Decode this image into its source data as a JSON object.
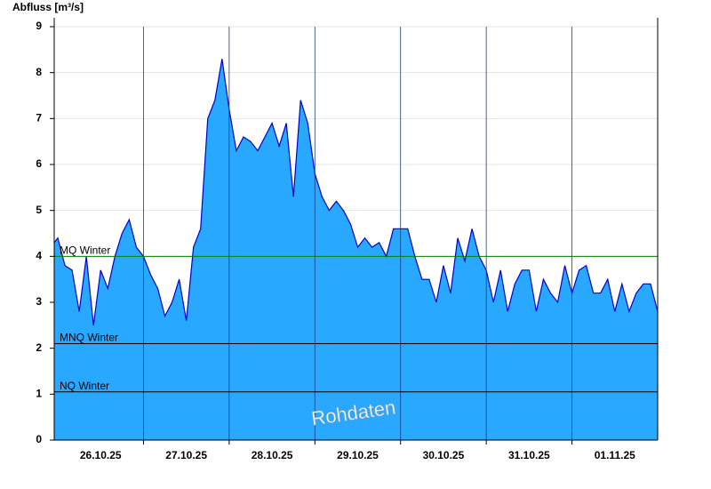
{
  "chart_data": {
    "type": "area",
    "y_label": "Abfluss [m³/s]",
    "watermark": "Rohdaten",
    "x": [
      -1,
      0,
      2,
      4,
      6,
      8,
      10,
      12,
      14,
      16,
      18,
      20,
      22,
      24,
      26,
      28,
      30,
      32,
      34,
      36,
      38,
      40,
      42,
      44,
      46,
      48,
      50,
      52,
      54,
      56,
      58,
      60,
      62,
      64,
      66,
      68,
      70,
      72,
      74,
      76,
      78,
      80,
      82,
      84,
      86,
      88,
      90,
      92,
      94,
      96,
      98,
      100,
      102,
      104,
      106,
      108,
      110,
      112,
      114,
      116,
      118,
      120,
      122,
      124,
      126,
      128,
      130,
      132,
      134,
      136,
      138,
      140,
      142,
      144,
      146,
      148,
      150,
      152,
      154,
      156,
      158,
      160,
      162,
      164,
      166,
      168
    ],
    "series": [
      {
        "color": "#29a8ff",
        "line_color": "#0000cc",
        "values": [
          4.3,
          4.4,
          3.8,
          3.7,
          2.8,
          4.0,
          2.5,
          3.7,
          3.3,
          4.0,
          4.5,
          4.8,
          4.2,
          4.0,
          3.6,
          3.3,
          2.7,
          3.0,
          3.5,
          2.6,
          4.2,
          4.6,
          7.0,
          7.4,
          8.3,
          7.2,
          6.3,
          6.6,
          6.5,
          6.3,
          6.6,
          6.9,
          6.4,
          6.9,
          5.3,
          7.4,
          6.9,
          5.8,
          5.3,
          5.0,
          5.2,
          5.0,
          4.7,
          4.2,
          4.4,
          4.2,
          4.3,
          4.0,
          4.6,
          4.6,
          4.6,
          4.0,
          3.5,
          3.5,
          3.0,
          3.8,
          3.2,
          4.4,
          3.9,
          4.6,
          4.0,
          3.7,
          3.0,
          3.7,
          2.8,
          3.4,
          3.7,
          3.7,
          2.8,
          3.5,
          3.2,
          3.0,
          3.8,
          3.2,
          3.7,
          3.8,
          3.2,
          3.2,
          3.5,
          2.8,
          3.4,
          2.8,
          3.2,
          3.4,
          3.4,
          2.8
        ]
      }
    ],
    "xlim": [
      -1,
      168
    ],
    "xticks": [
      {
        "value": 12,
        "label": "26.10.25"
      },
      {
        "value": 36,
        "label": "27.10.25"
      },
      {
        "value": 60,
        "label": "28.10.25"
      },
      {
        "value": 84,
        "label": "29.10.25"
      },
      {
        "value": 108,
        "label": "30.10.25"
      },
      {
        "value": 132,
        "label": "31.10.25"
      },
      {
        "value": 156,
        "label": "01.11.25"
      }
    ],
    "x_gridlines": [
      24,
      48,
      72,
      96,
      120,
      144
    ],
    "ylim": [
      0,
      9
    ],
    "yticks": [
      0,
      1,
      2,
      3,
      4,
      5,
      6,
      7,
      8,
      9
    ],
    "grid": true,
    "reference_lines": [
      {
        "label": "MQ Winter",
        "value": 4.0,
        "color": "#008000"
      },
      {
        "label": "MNQ Winter",
        "value": 2.1,
        "color": "#000000"
      },
      {
        "label": "NQ Winter",
        "value": 1.05,
        "color": "#000000"
      }
    ]
  }
}
